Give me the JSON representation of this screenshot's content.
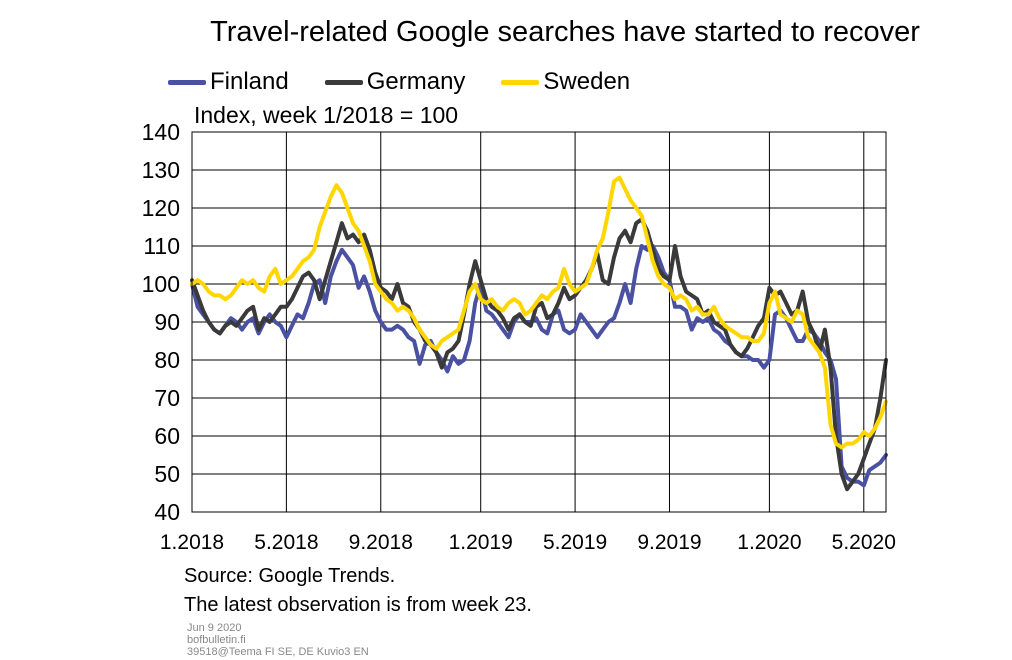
{
  "chart_data": {
    "type": "line",
    "title": "Travel-related Google searches have started to recover",
    "subtitle": "Index, week 1/2018 = 100",
    "ylim": [
      40,
      140
    ],
    "yticks": [
      40,
      50,
      60,
      70,
      80,
      90,
      100,
      110,
      120,
      130,
      140
    ],
    "x_tick_labels": [
      "1.2018",
      "5.2018",
      "9.2018",
      "1.2019",
      "5.2019",
      "9.2019",
      "1.2020",
      "5.2020"
    ],
    "x_tick_weeks": [
      1,
      18,
      35,
      53,
      70,
      87,
      105,
      122
    ],
    "x_range_weeks": [
      1,
      126
    ],
    "grid": true,
    "legend_position": "top",
    "series": [
      {
        "name": "Finland",
        "color": "#4a51a3",
        "values": [
          100,
          94,
          92,
          90,
          88,
          87,
          89,
          91,
          90,
          88,
          90,
          91,
          87,
          90,
          92,
          90,
          89,
          86,
          89,
          92,
          91,
          95,
          100,
          101,
          95,
          102,
          106,
          109,
          107,
          105,
          99,
          102,
          98,
          93,
          90,
          88,
          88,
          89,
          88,
          86,
          85,
          79,
          84,
          85,
          82,
          80,
          77,
          81,
          79,
          80,
          85,
          95,
          100,
          93,
          92,
          90,
          88,
          86,
          90,
          92,
          90,
          90,
          91,
          88,
          87,
          92,
          93,
          88,
          87,
          88,
          92,
          90,
          88,
          86,
          88,
          90,
          91,
          95,
          100,
          95,
          104,
          110,
          109,
          110,
          107,
          103,
          101,
          94,
          94,
          93,
          88,
          91,
          90,
          91,
          88,
          87,
          85,
          84,
          82,
          81,
          81,
          80,
          80,
          78,
          80,
          92,
          93,
          91,
          88,
          85,
          85,
          88,
          87,
          85,
          82,
          80,
          75,
          52,
          49,
          48,
          48,
          47,
          51,
          52,
          53,
          55
        ]
      },
      {
        "name": "Germany",
        "color": "#3a3a3a",
        "values": [
          101,
          97,
          93,
          90,
          88,
          87,
          89,
          90,
          89,
          91,
          93,
          94,
          88,
          91,
          90,
          92,
          94,
          94,
          96,
          99,
          102,
          103,
          101,
          96,
          101,
          106,
          111,
          116,
          112,
          113,
          111,
          113,
          109,
          103,
          99,
          98,
          96,
          100,
          95,
          94,
          90,
          88,
          85,
          84,
          82,
          78,
          82,
          83,
          85,
          92,
          100,
          106,
          101,
          96,
          94,
          93,
          91,
          88,
          91,
          92,
          90,
          89,
          94,
          95,
          91,
          92,
          95,
          99,
          96,
          97,
          99,
          101,
          104,
          108,
          101,
          100,
          107,
          112,
          114,
          111,
          116,
          117,
          114,
          109,
          104,
          102,
          101,
          110,
          102,
          98,
          97,
          96,
          92,
          93,
          90,
          89,
          88,
          84,
          82,
          81,
          83,
          86,
          89,
          91,
          99,
          97,
          98,
          95,
          92,
          93,
          98,
          90,
          87,
          82,
          88,
          78,
          60,
          50,
          46,
          48,
          50,
          54,
          58,
          62,
          70,
          80
        ]
      },
      {
        "name": "Sweden",
        "color": "#ffd600",
        "values": [
          100,
          101,
          100,
          98,
          97,
          97,
          96,
          97,
          99,
          101,
          100,
          101,
          99,
          98,
          102,
          104,
          100,
          101,
          102,
          104,
          106,
          107,
          109,
          115,
          119,
          123,
          126,
          124,
          120,
          116,
          114,
          110,
          106,
          100,
          98,
          96,
          95,
          93,
          94,
          93,
          91,
          88,
          86,
          84,
          83,
          85,
          86,
          87,
          88,
          93,
          98,
          100,
          96,
          95,
          96,
          94,
          93,
          95,
          96,
          95,
          92,
          93,
          95,
          97,
          96,
          98,
          99,
          104,
          100,
          98,
          99,
          100,
          104,
          109,
          112,
          119,
          127,
          128,
          125,
          122,
          120,
          118,
          112,
          106,
          102,
          100,
          99,
          96,
          97,
          96,
          93,
          94,
          92,
          92,
          94,
          91,
          89,
          88,
          87,
          86,
          86,
          85,
          85,
          87,
          95,
          98,
          92,
          91,
          90,
          93,
          92,
          86,
          84,
          82,
          78,
          63,
          58,
          57,
          58,
          58,
          59,
          61,
          60,
          62,
          65,
          69
        ]
      }
    ]
  },
  "footnote": {
    "line1": "Source: Google Trends.",
    "line2": "The latest observation is from week 23."
  },
  "meta": {
    "date": "Jun 9 2020",
    "site": "bofbulletin.fi",
    "code": "39518@Teema FI SE, DE Kuvio3 EN"
  }
}
